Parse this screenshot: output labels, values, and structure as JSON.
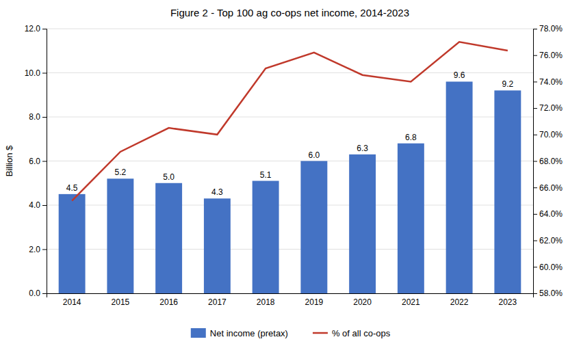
{
  "chart_data": {
    "type": "bar",
    "title": "Figure 2 - Top 100 ag co-ops net income, 2014-2023",
    "categories": [
      "2014",
      "2015",
      "2016",
      "2017",
      "2018",
      "2019",
      "2020",
      "2021",
      "2022",
      "2023"
    ],
    "series": [
      {
        "name": "Net income (pretax)",
        "type": "bar",
        "color": "#4472C4",
        "values": [
          4.5,
          5.2,
          5.0,
          4.3,
          5.1,
          6.0,
          6.3,
          6.8,
          9.6,
          9.2
        ],
        "value_labels": [
          "4.5",
          "5.2",
          "5.0",
          "4.3",
          "5.1",
          "6.0",
          "6.3",
          "6.8",
          "9.6",
          "9.2"
        ],
        "data_labels": true
      },
      {
        "name": "% of all co-ops",
        "type": "line",
        "color": "#C0392B",
        "axis": "y2",
        "values": [
          0.65,
          0.687,
          0.705,
          0.7,
          0.75,
          0.762,
          0.745,
          0.74,
          0.77,
          0.7635
        ]
      }
    ],
    "ylabel": "Billion $",
    "ylim": [
      0,
      12.0
    ],
    "yticks": [
      {
        "value": 0,
        "label": "0.0"
      },
      {
        "value": 2,
        "label": "2.0"
      },
      {
        "value": 4,
        "label": "4.0"
      },
      {
        "value": 6,
        "label": "6.0"
      },
      {
        "value": 8,
        "label": "8.0"
      },
      {
        "value": 10,
        "label": "10.0"
      },
      {
        "value": 12,
        "label": "12.0"
      }
    ],
    "y2lim": [
      0.58,
      0.78
    ],
    "y2ticks": [
      {
        "value": 0.58,
        "label": "58.0%"
      },
      {
        "value": 0.6,
        "label": "60.0%"
      },
      {
        "value": 0.62,
        "label": "62.0%"
      },
      {
        "value": 0.64,
        "label": "64.0%"
      },
      {
        "value": 0.66,
        "label": "66.0%"
      },
      {
        "value": 0.68,
        "label": "68.0%"
      },
      {
        "value": 0.7,
        "label": "70.0%"
      },
      {
        "value": 0.72,
        "label": "72.0%"
      },
      {
        "value": 0.74,
        "label": "74.0%"
      },
      {
        "value": 0.76,
        "label": "76.0%"
      },
      {
        "value": 0.78,
        "label": "78.0%"
      }
    ],
    "grid": true,
    "legend": "bottom"
  }
}
